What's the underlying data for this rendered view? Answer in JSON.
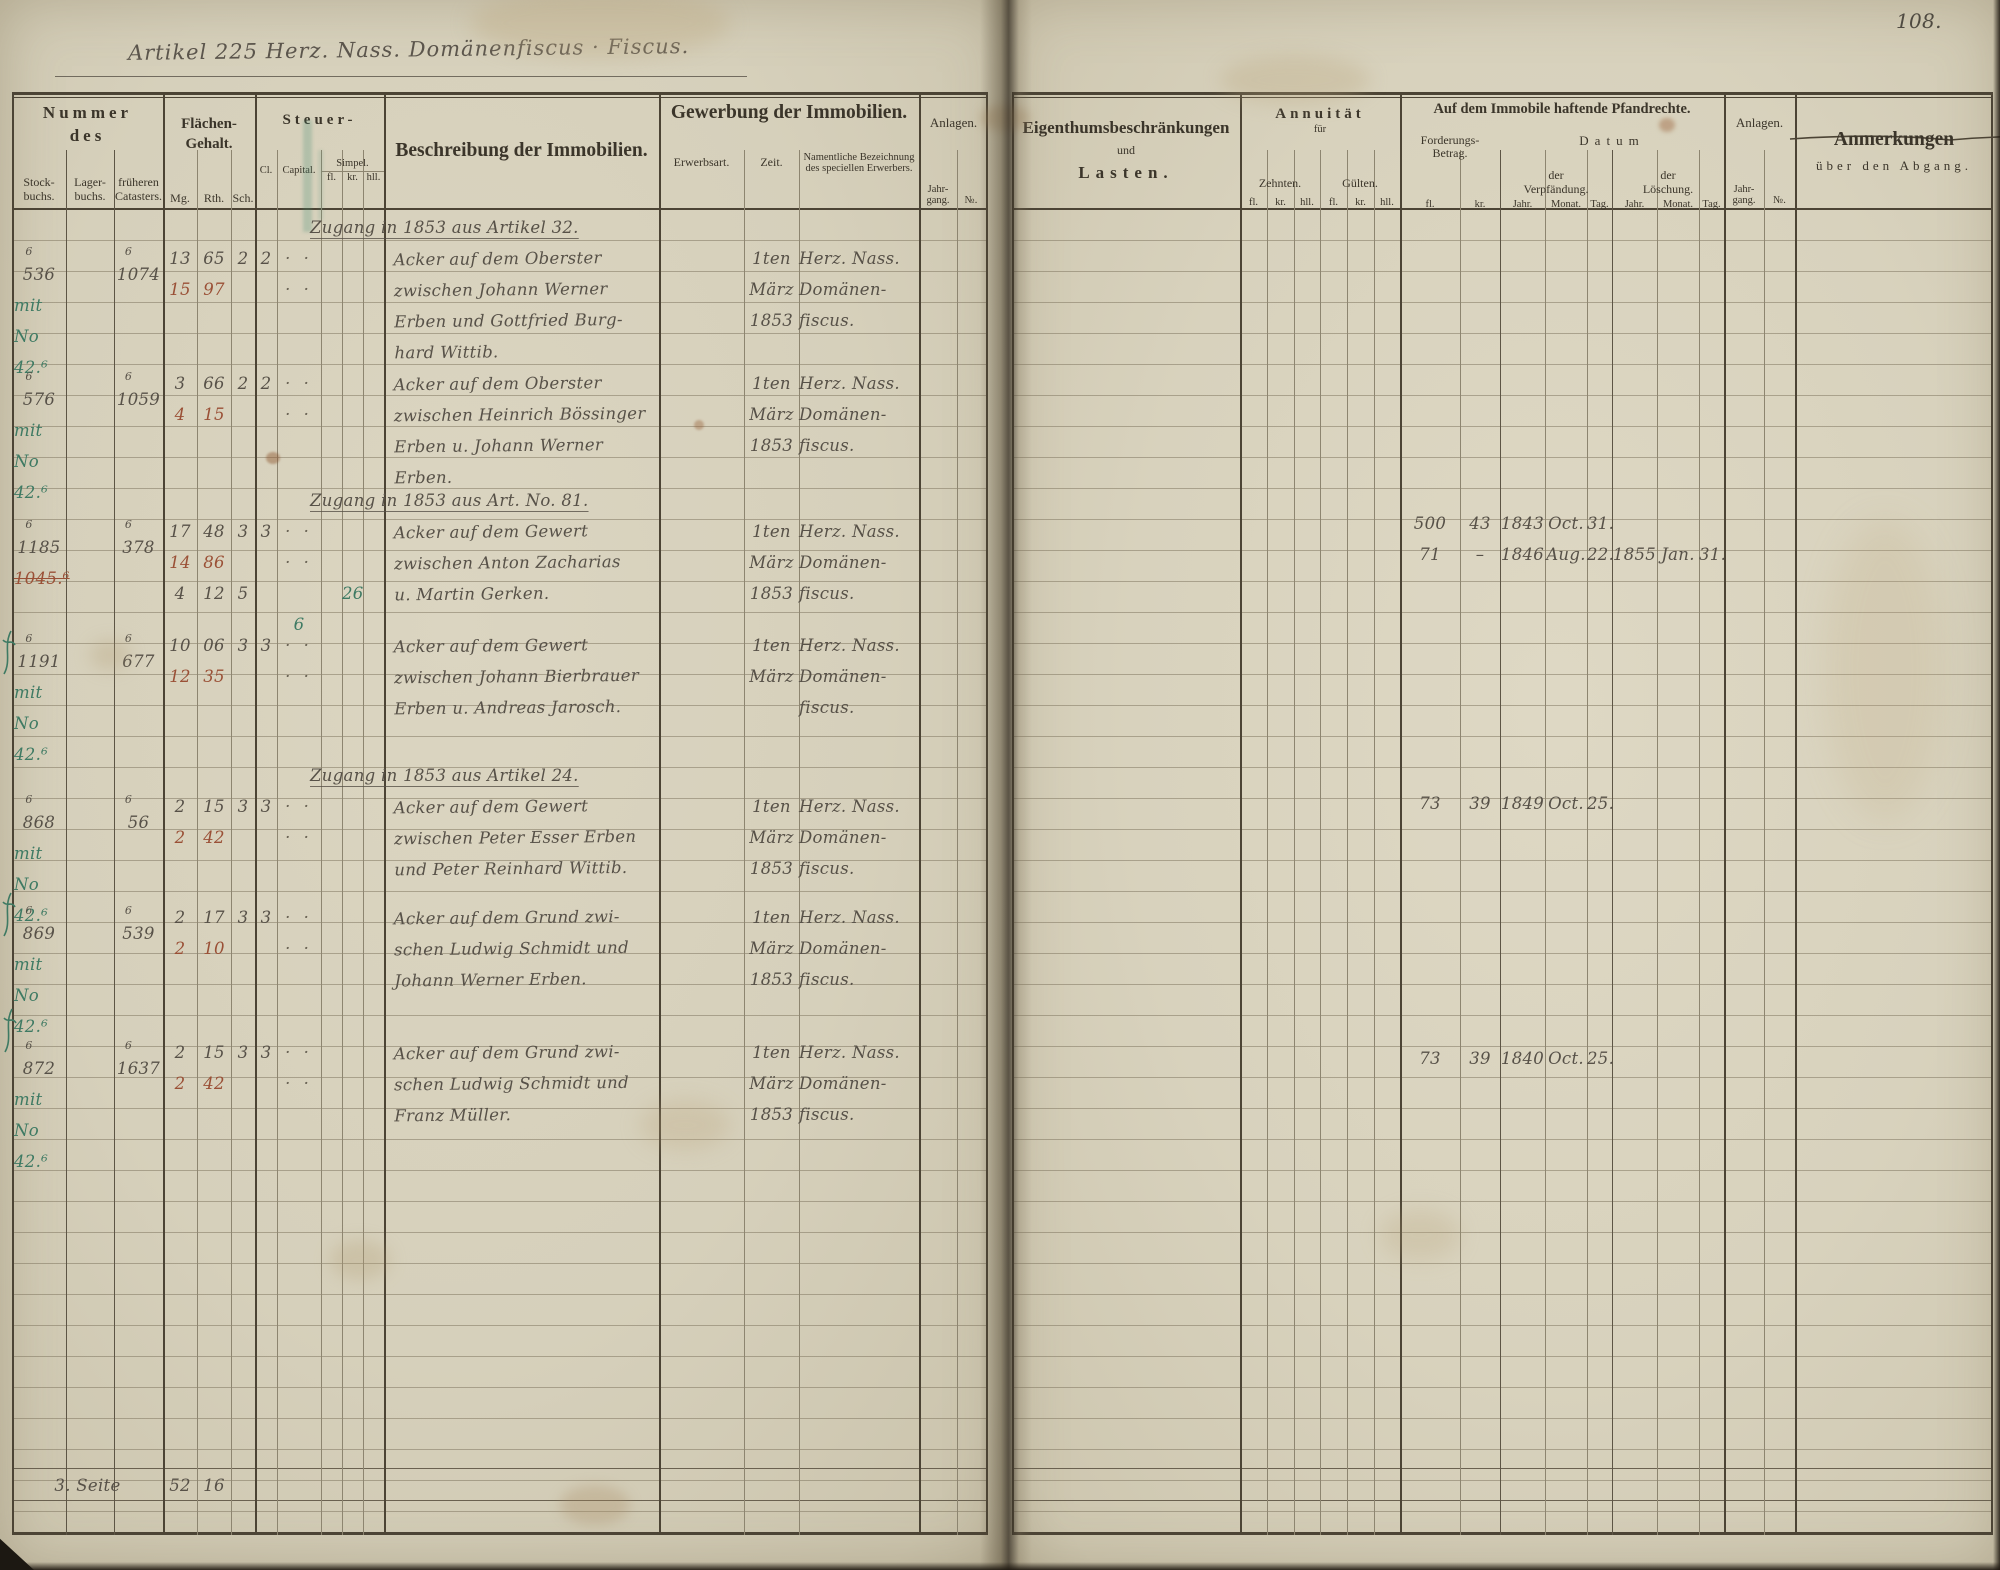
{
  "page_number": "108.",
  "title": "Artikel 225 Herz. Nass. Domänenfiscus · Fiscus.",
  "ink_colors": {
    "ink": "#575148",
    "red": "#9a5036",
    "green": "#3e7a63",
    "print": "#3b352a",
    "paper": "#d8d2bd"
  },
  "left_header": {
    "nummer": "Nummer\ndes",
    "stockbuchs": "Stock-\nbuchs.",
    "lagerbuchs": "Lager-\nbuchs.",
    "cataster": "früheren\nCatasters.",
    "flaechen": "Flächen-\nGehalt.",
    "mg": "Mg.",
    "rth": "Rth.",
    "sch": "Sch.",
    "steuer": "Steuer-",
    "cl": "Cl.",
    "capital": "Capital.",
    "simpel": "Simpel.",
    "fl": "fl.",
    "kr": "kr.",
    "hll": "hll.",
    "beschreibung": "Beschreibung der Immobilien.",
    "gewerbung": "Gewerbung der Immobilien.",
    "erwerbsart": "Erwerbsart.",
    "zeit": "Zeit.",
    "namentlich": "Namentliche Bezeichnung\ndes speciellen Erwerbers.",
    "anlagen": "Anlagen.",
    "jahrgang": "Jahr-\ngang.",
    "no": "№."
  },
  "right_header": {
    "eigenthum": "Eigenthumsbeschränkungen",
    "und": "und",
    "lasten": "Lasten.",
    "annuitaet": "Annuität",
    "fuer": "für",
    "zehnten": "Zehnten.",
    "guelten": "Gülten.",
    "fl": "fl.",
    "kr": "kr.",
    "hll": "hll.",
    "pfandrechte": "Auf dem Immobile haftende Pfandrechte.",
    "forderung": "Forderungs-\nBetrag.",
    "datum": "Datum",
    "verpfaendung": "der\nVerpfändung.",
    "loeschung": "der\nLöschung.",
    "jahr": "Jahr.",
    "monat": "Monat.",
    "tag": "Tag.",
    "anlagen": "Anlagen.",
    "jahrgang": "Jahr-\ngang.",
    "no": "№.",
    "anmerkungen": "Anmerkungen",
    "abgang": "über den Abgang."
  },
  "entries": [
    {
      "zugang": "Zugang in 1853 aus Artikel 32.",
      "sup": "6",
      "stock": "536",
      "note": "mit\nNo 42.⁶",
      "catsup": "6",
      "cat": "1074",
      "mg1": "13",
      "rth1": "65",
      "sch1": "2",
      "mg2": "15",
      "rth2": "97",
      "cl": "2",
      "dots": "· · · ·",
      "besch": "Acker auf dem Oberster\nzwischen Johann Werner\nErben und Gottfried Burg-\nhard Wittib.",
      "zeit": "1ten\nMärz\n1853",
      "erw": "Herz. Nass.\nDomänen-\nfiscus."
    },
    {
      "zugang": "",
      "sup": "6",
      "stock": "576",
      "note": "mit\nNo 42.⁶",
      "catsup": "6",
      "cat": "1059",
      "mg1": "3",
      "rth1": "66",
      "sch1": "2",
      "mg2": "4",
      "rth2": "15",
      "cl": "2",
      "dots": "· · · ·",
      "besch": "Acker auf dem Oberster\nzwischen Heinrich Bössinger\nErben u. Johann Werner\nErben.",
      "zeit": "1ten\nMärz\n1853",
      "erw": "Herz. Nass.\nDomänen-\nfiscus."
    },
    {
      "zugang": "Zugang in 1853 aus Art. No. 81.",
      "sup": "6",
      "stock": "1185",
      "note": "1045.⁶",
      "catsup": "6",
      "cat": "378",
      "mg1": "17",
      "rth1": "48",
      "sch1": "3",
      "mg2": "14",
      "rth2": "86",
      "mg3": "4",
      "rth3": "12",
      "sch3": "5",
      "cap3": "6",
      "kr3": "26",
      "cl": "3",
      "dots": "· · · ·",
      "besch": "Acker auf dem Gewert\nzwischen Anton Zacharias\nu. Martin Gerken.",
      "zeit": "1ten\nMärz\n1853",
      "erw": "Herz. Nass.\nDomänen-\nfiscus."
    },
    {
      "zugang": "",
      "sup": "6",
      "stock": "1191",
      "note": "mit\nNo 42.⁶",
      "catsup": "6",
      "cat": "677",
      "mg1": "10",
      "rth1": "06",
      "sch1": "3",
      "mg2": "12",
      "rth2": "35",
      "cl": "3",
      "dots": "· · · ·",
      "besch": "Acker auf dem Gewert\nzwischen Johann Bierbrauer\nErben u. Andreas Jarosch.",
      "zeit": "1ten\nMärz",
      "erw": "Herz. Nass.\nDomänen-\nfiscus."
    },
    {
      "zugang": "Zugang in 1853 aus Artikel 24.",
      "sup": "6",
      "stock": "868",
      "note": "mit\nNo 42.⁶",
      "catsup": "6",
      "cat": "56",
      "mg1": "2",
      "rth1": "15",
      "sch1": "3",
      "mg2": "2",
      "rth2": "42",
      "cl": "3",
      "dots": "· · · ·",
      "besch": "Acker auf dem Gewert\nzwischen Peter Esser Erben\nund Peter Reinhard Wittib.",
      "zeit": "1ten\nMärz\n1853",
      "erw": "Herz. Nass.\nDomänen-\nfiscus."
    },
    {
      "zugang": "",
      "sup": "6",
      "stock": "869",
      "note": "mit\nNo 42.⁶",
      "catsup": "6",
      "cat": "539",
      "mg1": "2",
      "rth1": "17",
      "sch1": "3",
      "mg2": "2",
      "rth2": "10",
      "cl": "3",
      "dots": "· · · ·",
      "besch": "Acker auf dem Grund zwi-\nschen Ludwig Schmidt und\nJohann Werner Erben.",
      "zeit": "1ten\nMärz\n1853",
      "erw": "Herz. Nass.\nDomänen-\nfiscus."
    },
    {
      "zugang": "",
      "sup": "6",
      "stock": "872",
      "note": "mit\nNo 42.⁶",
      "catsup": "6",
      "cat": "1637",
      "mg1": "2",
      "rth1": "15",
      "sch1": "3",
      "mg2": "2",
      "rth2": "42",
      "cl": "3",
      "dots": "· · · ·",
      "besch": "Acker auf dem Grund zwi-\nschen Ludwig Schmidt und\nFranz Müller.",
      "zeit": "1ten\nMärz\n1853",
      "erw": "Herz. Nass.\nDomänen-\nfiscus."
    }
  ],
  "right_entries": [
    {
      "fl": "500",
      "kr": "43",
      "vj": "1843",
      "vm": "Oct.",
      "vt": "31."
    },
    {
      "fl": "71",
      "kr": "–",
      "vj": "1846",
      "vm": "Aug.",
      "vt": "22.",
      "lj": "1855",
      "lm": "Jan.",
      "lt": "31."
    },
    {
      "fl": "73",
      "kr": "39",
      "vj": "1849",
      "vm": "Oct.",
      "vt": "25."
    },
    {
      "fl": "73",
      "kr": "39",
      "vj": "1840",
      "vm": "Oct.",
      "vt": "25."
    }
  ],
  "footer": {
    "label": "3. Seite",
    "mg": "52",
    "rth": "16"
  }
}
